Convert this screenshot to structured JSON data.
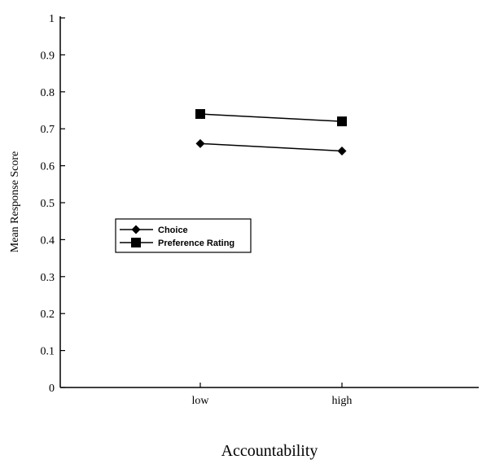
{
  "chart_data": {
    "type": "line",
    "title": "",
    "xlabel": "Accountability",
    "ylabel": "Mean Response Score",
    "categories": [
      "low",
      "high"
    ],
    "ylim": [
      0,
      1
    ],
    "yticks": [
      "0",
      "0.1",
      "0.2",
      "0.3",
      "0.4",
      "0.5",
      "0.6",
      "0.7",
      "0.8",
      "0.9",
      "1"
    ],
    "grid": false,
    "legend_position": "left",
    "series": [
      {
        "name": "Choice",
        "values": [
          0.66,
          0.64
        ],
        "marker": "diamond",
        "color": "#000000"
      },
      {
        "name": "Preference Rating",
        "values": [
          0.74,
          0.72
        ],
        "marker": "square",
        "color": "#000000"
      }
    ]
  }
}
